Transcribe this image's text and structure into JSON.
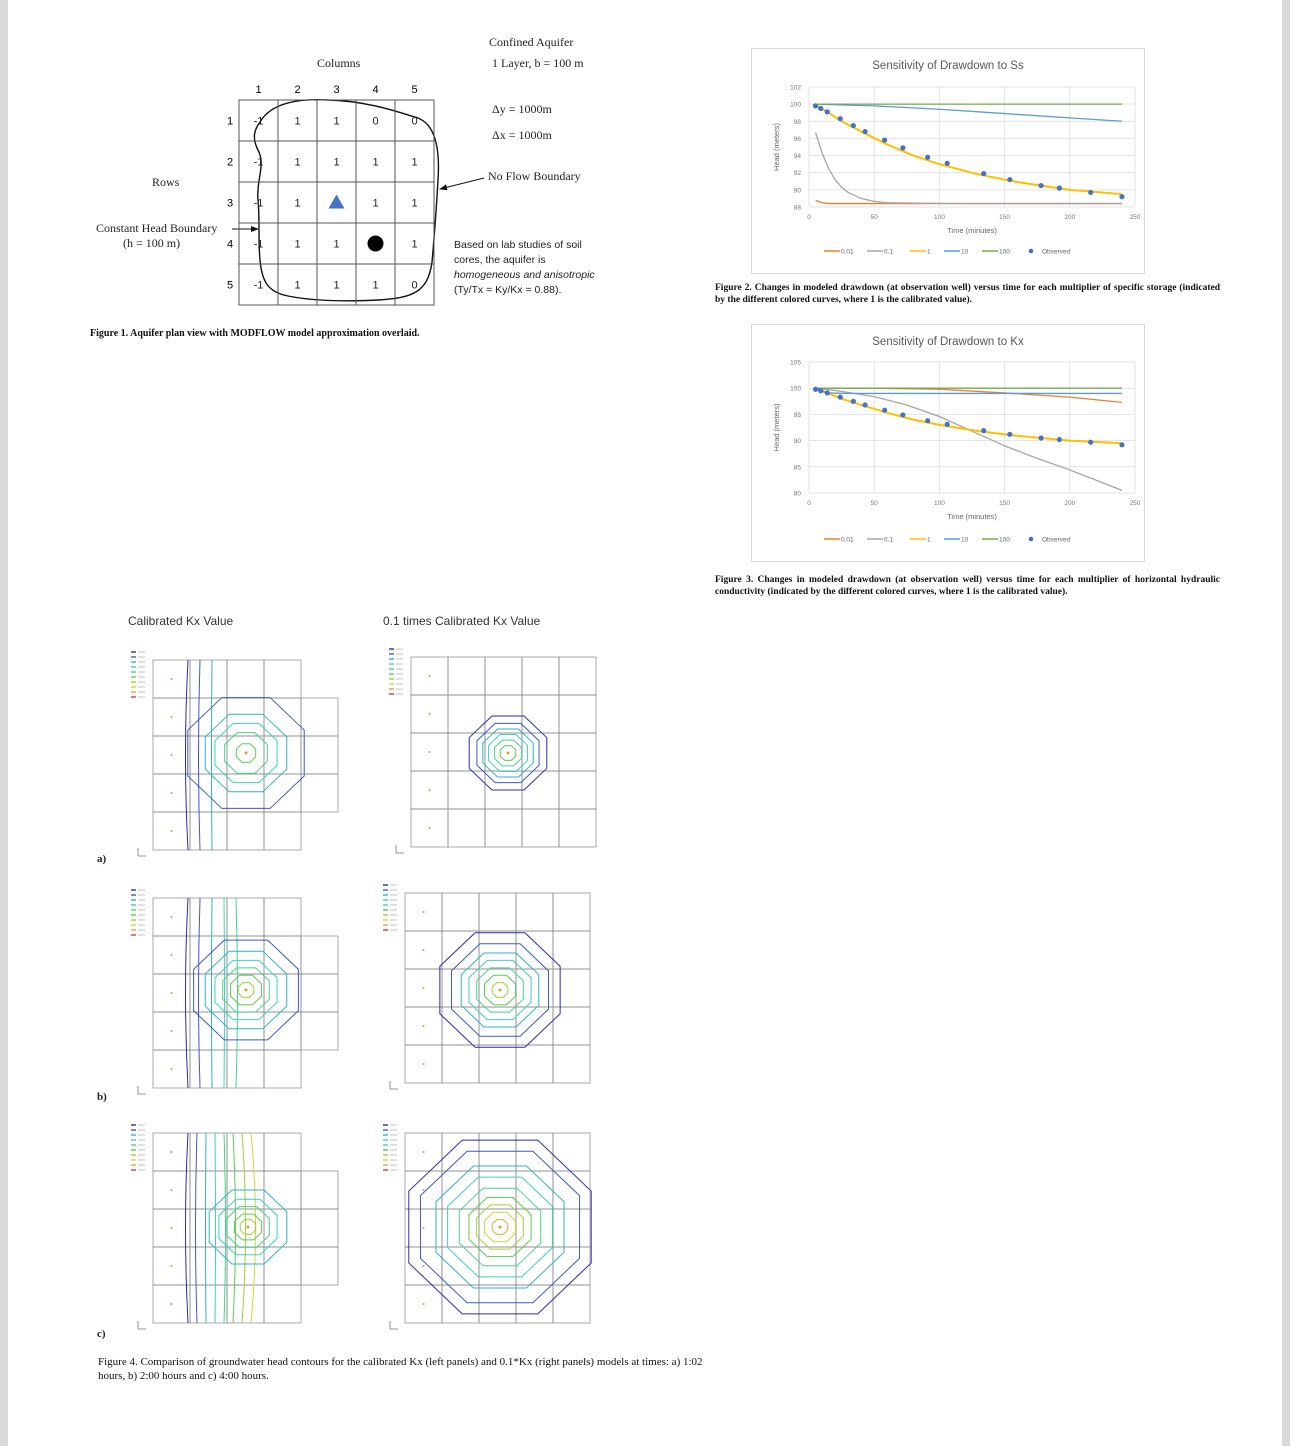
{
  "figure1": {
    "confined_title": "Confined Aquifer",
    "layer_info": "1 Layer, b = 100 m",
    "columns_label": "Columns",
    "rows_label": "Rows",
    "column_numbers": [
      "1",
      "2",
      "3",
      "4",
      "5"
    ],
    "row_numbers": [
      "1",
      "2",
      "3",
      "4",
      "5"
    ],
    "cells": [
      [
        "-1",
        "1",
        "1",
        "0",
        "0"
      ],
      [
        "-1",
        "1",
        "1",
        "1",
        "1"
      ],
      [
        "-1",
        "1",
        "",
        "1",
        "1"
      ],
      [
        "-1",
        "1",
        "1",
        "",
        "1"
      ],
      [
        "-1",
        "1",
        "1",
        "1",
        "0"
      ]
    ],
    "dy": "Δy  =  1000m",
    "dx": "Δx  =  1000m",
    "no_flow_label": "No Flow Boundary",
    "constant_head_label": "Constant Head Boundary",
    "constant_head_value": "(h = 100 m)",
    "note_line1": "Based on lab studies of soil",
    "note_line2": "cores, the aquifer is",
    "note_line3": "homogeneous and anisotropic",
    "note_line4": "(Ty/Tx = Ky/Kx = 0.88).",
    "observation_marker_color": "#4472c4",
    "caption": "Figure 1. Aquifer plan view with MODFLOW model approximation overlaid."
  },
  "chart_data": [
    {
      "type": "line",
      "title": "Sensitivity of Drawdown to Ss",
      "xlabel": "Time (minutes)",
      "ylabel": "Head (meters)",
      "xlim": [
        0,
        250
      ],
      "ylim": [
        88,
        102
      ],
      "xticks": [
        "0",
        "50",
        "100",
        "150",
        "200",
        "250"
      ],
      "yticks": [
        "88",
        "90",
        "92",
        "94",
        "96",
        "98",
        "100",
        "102"
      ],
      "grid": true,
      "legend": "bottom",
      "series": [
        {
          "name": "0.01",
          "color": "#ed7d31",
          "x": [
            5,
            8,
            12,
            16,
            30,
            60,
            120,
            240
          ],
          "y": [
            88.8,
            88.6,
            88.45,
            88.4,
            88.4,
            88.4,
            88.4,
            88.4
          ]
        },
        {
          "name": "0.1",
          "color": "#a5a5a5",
          "x": [
            5,
            10,
            15,
            20,
            25,
            30,
            40,
            50,
            60,
            80,
            120,
            240
          ],
          "y": [
            96.7,
            94.3,
            92.5,
            91.2,
            90.3,
            89.7,
            89.0,
            88.65,
            88.5,
            88.45,
            88.4,
            88.4
          ]
        },
        {
          "name": "1",
          "color": "#ffc000",
          "x": [
            5,
            15,
            25,
            40,
            60,
            80,
            100,
            130,
            160,
            200,
            240
          ],
          "y": [
            99.9,
            99.0,
            98.0,
            96.8,
            95.3,
            94.0,
            93.0,
            91.8,
            90.9,
            90.0,
            89.5
          ]
        },
        {
          "name": "10",
          "color": "#5b9bd5",
          "x": [
            5,
            50,
            100,
            150,
            200,
            240
          ],
          "y": [
            100,
            99.8,
            99.4,
            98.9,
            98.4,
            98.0
          ]
        },
        {
          "name": "100",
          "color": "#70ad47",
          "x": [
            5,
            240
          ],
          "y": [
            100,
            100
          ]
        }
      ],
      "observed": {
        "name": "Observed",
        "color": "#4472c4",
        "x": [
          5,
          9,
          14,
          24,
          34,
          43,
          58,
          72,
          91,
          106,
          134,
          154,
          178,
          192,
          216,
          240
        ],
        "y": [
          99.8,
          99.5,
          99.1,
          98.3,
          97.5,
          96.8,
          95.8,
          94.9,
          93.8,
          93.1,
          91.9,
          91.2,
          90.5,
          90.2,
          89.7,
          89.2
        ]
      }
    },
    {
      "type": "line",
      "title": "Sensitivity of Drawdown to Kx",
      "xlabel": "Time (minutes)",
      "ylabel": "Head (meters)",
      "xlim": [
        0,
        250
      ],
      "ylim": [
        80,
        105
      ],
      "xticks": [
        "0",
        "50",
        "100",
        "150",
        "200",
        "250"
      ],
      "yticks": [
        "80",
        "85",
        "90",
        "95",
        "100",
        "105"
      ],
      "grid": true,
      "legend": "bottom",
      "series": [
        {
          "name": "0.01",
          "color": "#ed7d31",
          "x": [
            5,
            50,
            100,
            150,
            200,
            240
          ],
          "y": [
            100,
            100,
            99.8,
            99.1,
            98.3,
            97.3
          ]
        },
        {
          "name": "0.1",
          "color": "#a5a5a5",
          "x": [
            5,
            25,
            50,
            75,
            100,
            125,
            150,
            175,
            200,
            240
          ],
          "y": [
            100,
            99.4,
            98.4,
            96.8,
            94.6,
            91.8,
            89.0,
            86.6,
            84.4,
            80.5
          ]
        },
        {
          "name": "1",
          "color": "#ffc000",
          "x": [
            5,
            15,
            25,
            40,
            60,
            80,
            100,
            130,
            160,
            200,
            240
          ],
          "y": [
            99.9,
            99.0,
            98.0,
            96.8,
            95.3,
            94.0,
            93.0,
            91.8,
            90.9,
            90.0,
            89.5
          ]
        },
        {
          "name": "10",
          "color": "#5b9bd5",
          "x": [
            5,
            10,
            15,
            30,
            240
          ],
          "y": [
            100,
            99.4,
            99.1,
            99.0,
            99.0
          ]
        },
        {
          "name": "100",
          "color": "#70ad47",
          "x": [
            5,
            240
          ],
          "y": [
            100,
            100
          ]
        }
      ],
      "observed": {
        "name": "Observed",
        "color": "#4472c4",
        "x": [
          5,
          9,
          14,
          24,
          34,
          43,
          58,
          72,
          91,
          106,
          134,
          154,
          178,
          192,
          216,
          240
        ],
        "y": [
          99.8,
          99.5,
          99.1,
          98.3,
          97.5,
          96.8,
          95.8,
          94.9,
          93.8,
          93.1,
          91.9,
          91.2,
          90.5,
          90.2,
          89.7,
          89.2
        ]
      }
    }
  ],
  "figure2_caption": "Figure 2. Changes in modeled drawdown (at observation well) versus time for each multiplier of specific storage (indicated by the different colored curves, where 1 is the calibrated value).",
  "figure3_caption": "Figure 3. Changes in modeled drawdown (at observation well) versus time for each multiplier of horizontal hydraulic conductivity (indicated by the different colored curves, where 1 is the calibrated value).",
  "figure4": {
    "left_title": "Calibrated Kx Value",
    "right_title": "0.1 times Calibrated Kx Value",
    "row_labels": [
      "a)",
      "b)",
      "c)"
    ],
    "caption": "Figure 4. Comparison of groundwater head contours for the calibrated Kx (left panels) and 0.1*Kx (right panels) models at times: a) 1:02 hours, b) 2:00 hours and c) 4:00 hours."
  }
}
